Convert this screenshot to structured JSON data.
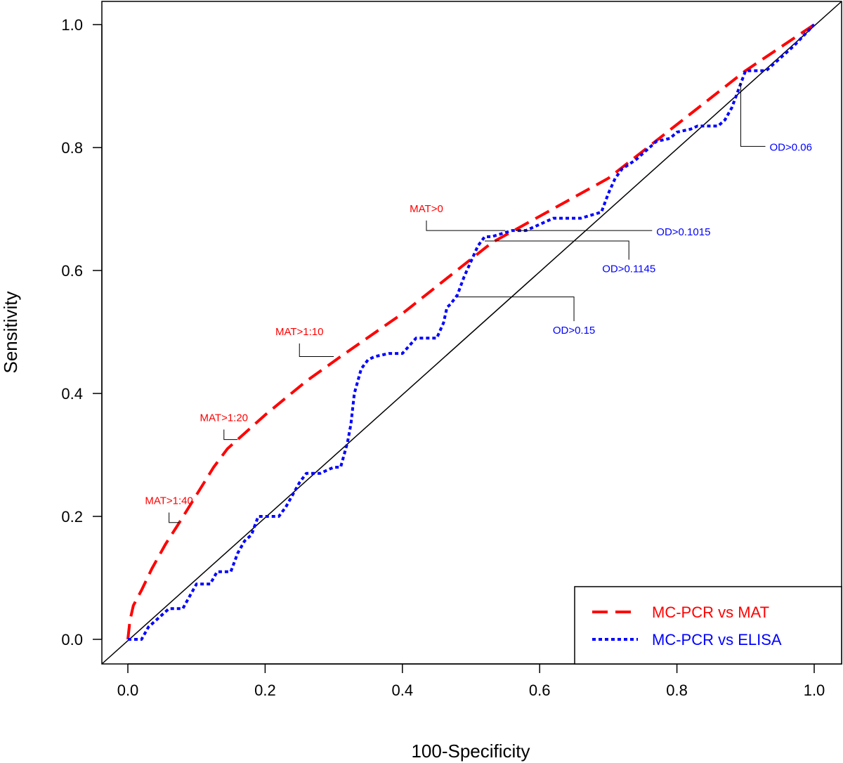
{
  "chart_data": {
    "type": "line",
    "title": "",
    "xlabel": "100-Specificity",
    "ylabel": "Sensitivity",
    "xlim": [
      0,
      1
    ],
    "ylim": [
      0,
      1
    ],
    "x_ticks": [
      "0.0",
      "0.2",
      "0.4",
      "0.6",
      "0.8",
      "1.0"
    ],
    "y_ticks": [
      "0.0",
      "0.2",
      "0.4",
      "0.6",
      "0.8",
      "1.0"
    ],
    "legend_position": "bottom-right",
    "reference_line": {
      "name": "diagonal",
      "x": [
        0,
        1
      ],
      "y": [
        0,
        1
      ],
      "color": "#000000"
    },
    "series": [
      {
        "name": "MC-PCR vs MAT",
        "color": "#ff0000",
        "style": "dashed",
        "x": [
          0,
          0.003,
          0.008,
          0.02,
          0.035,
          0.055,
          0.075,
          0.1,
          0.125,
          0.145,
          0.16,
          0.2,
          0.26,
          0.31,
          0.4,
          0.53,
          0.7,
          0.9,
          1.0
        ],
        "y": [
          0,
          0.03,
          0.055,
          0.08,
          0.115,
          0.155,
          0.19,
          0.235,
          0.28,
          0.31,
          0.325,
          0.365,
          0.42,
          0.46,
          0.53,
          0.645,
          0.75,
          0.925,
          1.0
        ]
      },
      {
        "name": "MC-PCR vs ELISA",
        "color": "#0000ff",
        "style": "dotted",
        "x": [
          0,
          0.02,
          0.03,
          0.05,
          0.06,
          0.08,
          0.09,
          0.1,
          0.11,
          0.12,
          0.13,
          0.15,
          0.16,
          0.17,
          0.18,
          0.19,
          0.2,
          0.22,
          0.23,
          0.24,
          0.25,
          0.26,
          0.27,
          0.28,
          0.3,
          0.31,
          0.32,
          0.325,
          0.33,
          0.34,
          0.35,
          0.36,
          0.38,
          0.4,
          0.42,
          0.45,
          0.46,
          0.465,
          0.47,
          0.48,
          0.49,
          0.5,
          0.51,
          0.52,
          0.53,
          0.56,
          0.58,
          0.6,
          0.62,
          0.66,
          0.69,
          0.7,
          0.71,
          0.72,
          0.74,
          0.75,
          0.77,
          0.79,
          0.8,
          0.82,
          0.83,
          0.86,
          0.87,
          0.88,
          0.89,
          0.9,
          0.93,
          0.95,
          0.97,
          1.0
        ],
        "y": [
          0,
          0,
          0.02,
          0.04,
          0.05,
          0.05,
          0.07,
          0.09,
          0.09,
          0.09,
          0.11,
          0.11,
          0.14,
          0.16,
          0.17,
          0.2,
          0.2,
          0.2,
          0.215,
          0.235,
          0.255,
          0.27,
          0.27,
          0.27,
          0.28,
          0.28,
          0.32,
          0.35,
          0.4,
          0.44,
          0.455,
          0.46,
          0.465,
          0.465,
          0.49,
          0.49,
          0.515,
          0.54,
          0.545,
          0.56,
          0.59,
          0.615,
          0.64,
          0.655,
          0.655,
          0.665,
          0.665,
          0.675,
          0.685,
          0.685,
          0.695,
          0.725,
          0.75,
          0.765,
          0.78,
          0.79,
          0.81,
          0.815,
          0.825,
          0.83,
          0.835,
          0.835,
          0.845,
          0.865,
          0.895,
          0.925,
          0.925,
          0.945,
          0.965,
          1.0
        ]
      }
    ],
    "annotations": [
      {
        "text": "MAT>1:40",
        "series": "MC-PCR vs MAT",
        "point": [
          0.075,
          0.19
        ],
        "label_pos": [
          0.06,
          0.22
        ],
        "color": "#ff0000",
        "anchor": "middle"
      },
      {
        "text": "MAT>1:20",
        "series": "MC-PCR vs MAT",
        "point": [
          0.16,
          0.325
        ],
        "label_pos": [
          0.14,
          0.355
        ],
        "color": "#ff0000",
        "anchor": "middle"
      },
      {
        "text": "MAT>1:10",
        "series": "MC-PCR vs MAT",
        "point": [
          0.3,
          0.46
        ],
        "label_pos": [
          0.25,
          0.495
        ],
        "color": "#ff0000",
        "anchor": "middle"
      },
      {
        "text": "MAT>0",
        "series": "MC-PCR vs MAT",
        "point": [
          0.55,
          0.665
        ],
        "label_pos": [
          0.435,
          0.695
        ],
        "color": "#ff0000",
        "anchor": "middle"
      },
      {
        "text": "OD>0.1015",
        "series": "MC-PCR vs ELISA",
        "point": [
          0.565,
          0.665
        ],
        "label_pos": [
          0.77,
          0.657
        ],
        "color": "#0000ff",
        "anchor": "start"
      },
      {
        "text": "OD>0.1145",
        "series": "MC-PCR vs ELISA",
        "point": [
          0.52,
          0.648
        ],
        "label_pos": [
          0.73,
          0.597
        ],
        "color": "#0000ff",
        "anchor": "middle"
      },
      {
        "text": "OD>0.15",
        "series": "MC-PCR vs ELISA",
        "point": [
          0.48,
          0.557
        ],
        "label_pos": [
          0.65,
          0.497
        ],
        "color": "#0000ff",
        "anchor": "middle"
      },
      {
        "text": "OD>0.06",
        "series": "MC-PCR vs ELISA",
        "point": [
          0.893,
          0.905
        ],
        "label_pos": [
          0.935,
          0.795
        ],
        "color": "#0000ff",
        "anchor": "start"
      }
    ]
  }
}
